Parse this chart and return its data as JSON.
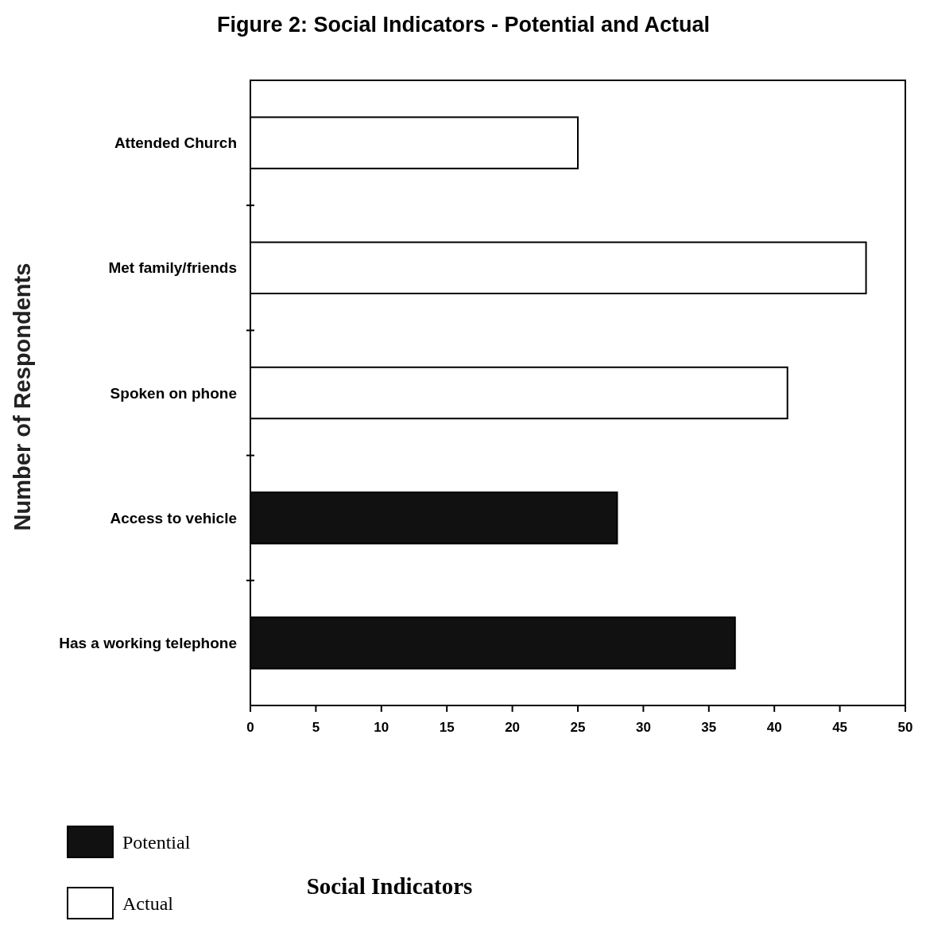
{
  "chart_data": {
    "type": "bar",
    "orientation": "horizontal",
    "stacked": true,
    "title": "Figure 2: Social Indicators - Potential and Actual",
    "annotations": [
      "Social Indicators"
    ],
    "ylabel": "Number of Respondents",
    "categories": [
      "Attended Church",
      "Met family/friends",
      "Spoken on phone",
      "Access to vehicle",
      "Has a working telephone"
    ],
    "series": [
      {
        "name": "Potential",
        "color": "#111111",
        "values": [
          null,
          null,
          null,
          28,
          37
        ]
      },
      {
        "name": "Actual",
        "color": "#ffffff",
        "values": [
          25,
          47,
          41,
          null,
          null
        ]
      }
    ],
    "xlim": [
      0,
      50
    ],
    "xticks": [
      0,
      5,
      10,
      15,
      20,
      25,
      30,
      35,
      40,
      45,
      50
    ],
    "grid": false,
    "legend": "bottom left"
  }
}
